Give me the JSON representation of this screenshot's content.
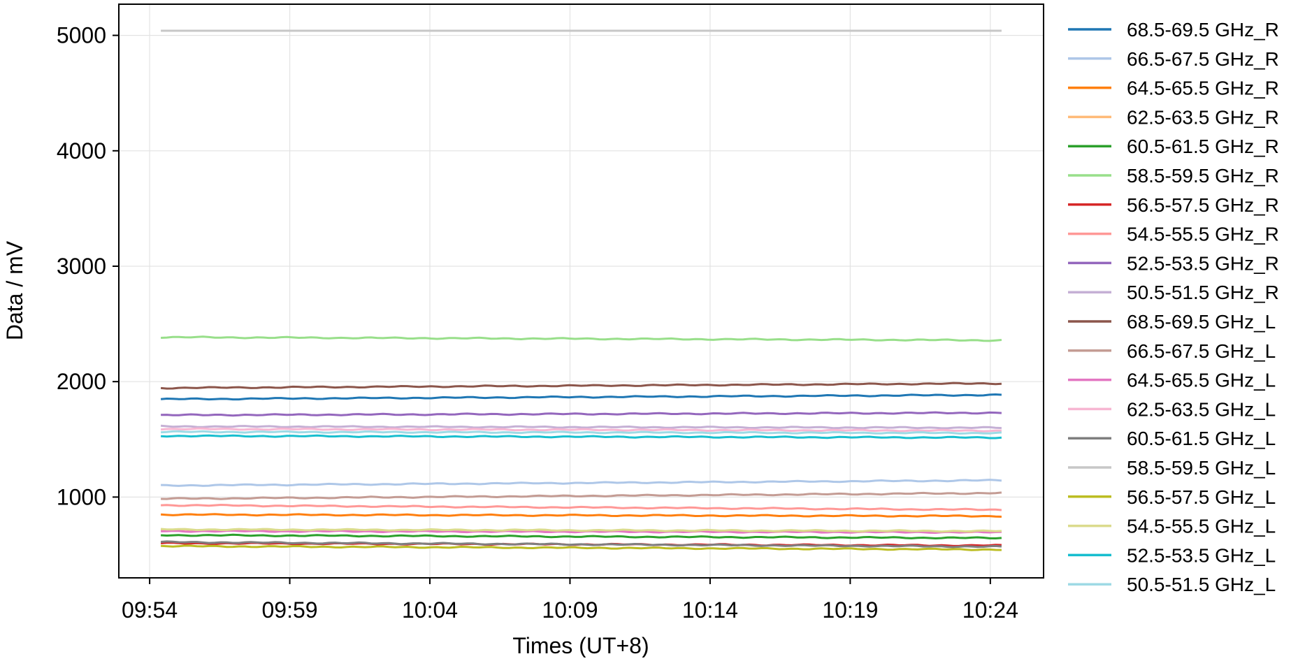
{
  "chart_data": {
    "type": "line",
    "title": "",
    "xlabel": "Times (UT+8)",
    "ylabel": "Data / mV",
    "x_ticks": [
      "09:54",
      "09:59",
      "10:04",
      "10:09",
      "10:14",
      "10:19",
      "10:24"
    ],
    "x_tick_minutes": [
      0,
      5,
      10,
      15,
      20,
      25,
      30
    ],
    "x_range_minutes": [
      -1.1,
      31.9
    ],
    "x_data_range_minutes": [
      0.4,
      30.4
    ],
    "y_ticks": [
      1000,
      2000,
      3000,
      4000,
      5000
    ],
    "ylim": [
      300,
      5270
    ],
    "grid": true,
    "legend_position": "right-outside",
    "series": [
      {
        "name": "68.5-69.5 GHz_R",
        "color": "#1f77b4",
        "start": 1848,
        "end": 1885
      },
      {
        "name": "66.5-67.5 GHz_R",
        "color": "#aec7e8",
        "start": 1100,
        "end": 1145
      },
      {
        "name": "64.5-65.5 GHz_R",
        "color": "#ff7f0e",
        "start": 848,
        "end": 835
      },
      {
        "name": "62.5-63.5 GHz_R",
        "color": "#ffbb78",
        "start": 715,
        "end": 700
      },
      {
        "name": "60.5-61.5 GHz_R",
        "color": "#2ca02c",
        "start": 670,
        "end": 645
      },
      {
        "name": "58.5-59.5 GHz_R",
        "color": "#98df8a",
        "start": 2385,
        "end": 2358
      },
      {
        "name": "56.5-57.5 GHz_R",
        "color": "#d62728",
        "start": 600,
        "end": 580
      },
      {
        "name": "54.5-55.5 GHz_R",
        "color": "#ff9896",
        "start": 930,
        "end": 890
      },
      {
        "name": "52.5-53.5 GHz_R",
        "color": "#9467bd",
        "start": 1710,
        "end": 1730
      },
      {
        "name": "50.5-51.5 GHz_R",
        "color": "#c5b0d5",
        "start": 1612,
        "end": 1600
      },
      {
        "name": "68.5-69.5 GHz_L",
        "color": "#8c564b",
        "start": 1945,
        "end": 1985
      },
      {
        "name": "66.5-67.5 GHz_L",
        "color": "#c49c94",
        "start": 985,
        "end": 1035
      },
      {
        "name": "64.5-65.5 GHz_L",
        "color": "#e377c2",
        "start": 705,
        "end": 695
      },
      {
        "name": "62.5-63.5 GHz_L",
        "color": "#f7b6d2",
        "start": 1590,
        "end": 1575
      },
      {
        "name": "60.5-61.5 GHz_L",
        "color": "#7f7f7f",
        "start": 610,
        "end": 570
      },
      {
        "name": "58.5-59.5 GHz_L",
        "color": "#c7c7c7",
        "start": 5040,
        "end": 5040
      },
      {
        "name": "56.5-57.5 GHz_L",
        "color": "#bcbd22",
        "start": 575,
        "end": 545
      },
      {
        "name": "54.5-55.5 GHz_L",
        "color": "#dbdb8d",
        "start": 720,
        "end": 705
      },
      {
        "name": "52.5-53.5 GHz_L",
        "color": "#17becf",
        "start": 1530,
        "end": 1515
      },
      {
        "name": "50.5-51.5 GHz_L",
        "color": "#9edae5",
        "start": 1565,
        "end": 1555
      }
    ]
  }
}
